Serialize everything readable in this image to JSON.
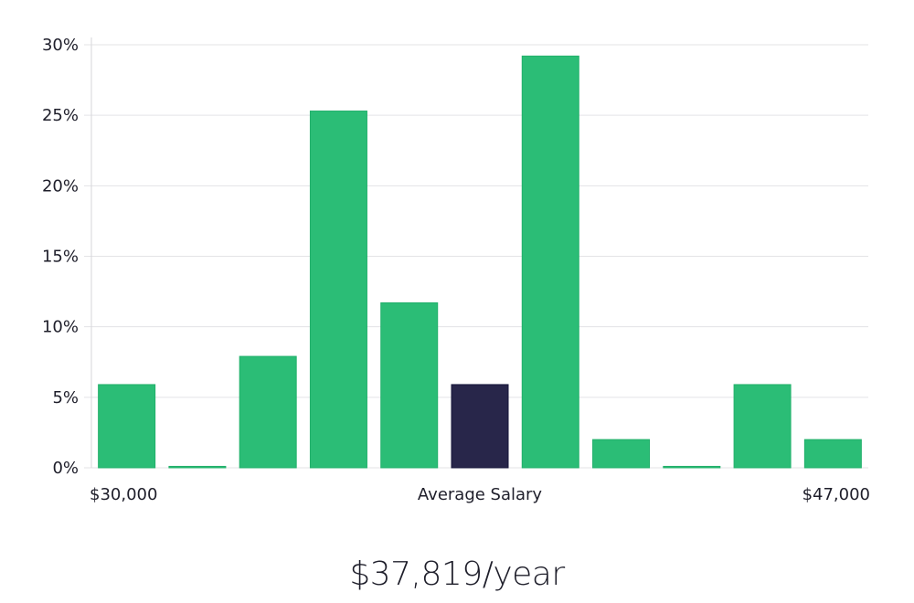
{
  "chart_data": {
    "type": "bar",
    "ylabel": "",
    "xlabel": "Average Salary",
    "x_min_label": "$30,000",
    "x_max_label": "$47,000",
    "ylim": [
      0,
      30
    ],
    "yticks": [
      0,
      5,
      10,
      15,
      20,
      25,
      30
    ],
    "ytick_labels": [
      "0%",
      "5%",
      "10%",
      "15%",
      "20%",
      "25%",
      "30%"
    ],
    "values": [
      5.9,
      0.1,
      7.9,
      25.3,
      11.7,
      5.9,
      29.2,
      2.0,
      0.1,
      5.9,
      2.0
    ],
    "highlight_index": 5,
    "grid": true
  },
  "colors": {
    "bar": "#2bbd76",
    "highlight": "#28264a",
    "grid": "#e3e3e6",
    "axis": "#d6d6da"
  },
  "salary_text": "$37,819/year"
}
